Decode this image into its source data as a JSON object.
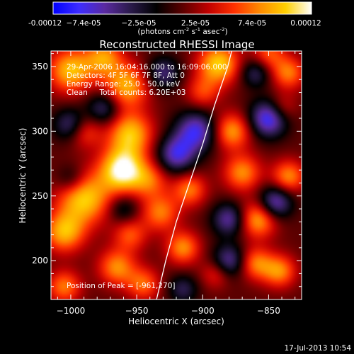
{
  "chart_data": {
    "type": "heatmap",
    "title": "Reconstructed RHESSI Image",
    "xlabel": "Heliocentric X (arcsec)",
    "ylabel": "Heliocentric Y (arcsec)",
    "xlim": [
      -1015,
      -825
    ],
    "ylim": [
      170,
      362
    ],
    "x_ticks": [
      -1000,
      -950,
      -900,
      -850
    ],
    "x_tick_labels": [
      "−1000",
      "−950",
      "−900",
      "−850"
    ],
    "y_ticks": [
      200,
      250,
      300,
      350
    ],
    "y_tick_labels": [
      "200",
      "250",
      "300",
      "350"
    ],
    "colorbar": {
      "range": [
        -0.00012,
        0.00012
      ],
      "tick_labels": [
        "-0.00012",
        "−7.4e-05",
        "−2.5e-05",
        "2.5e-05",
        "7.4e-05",
        "0.00012"
      ],
      "unit_main": "(photons cm",
      "unit_sup1": "-2",
      "unit_mid": " s",
      "unit_sup2": "-1",
      "unit_mid2": " asec",
      "unit_sup3": "-2",
      "unit_end": ")",
      "colormap": [
        "#0000ff",
        "#3d2cff",
        "#5a2aa0",
        "#2a1a4a",
        "#000000",
        "#5a0000",
        "#c00000",
        "#ff3000",
        "#ff8a00",
        "#ffd000",
        "#ffffff"
      ]
    },
    "annotations": [
      "29-Apr-2006 16:04:16.000 to 16:09:06.000",
      "Detectors: 4F 5F 6F 7F 8F, Att 0",
      "Energy Range: 25.0 - 50.0 keV",
      "Clean     Total counts: 6.20E+03"
    ],
    "peak_label": "Position of Peak = [-961,270]",
    "peak": [
      -961,
      270
    ],
    "limb_curve": [
      [
        -935,
        170
      ],
      [
        -928,
        200
      ],
      [
        -920,
        230
      ],
      [
        -910,
        260
      ],
      [
        -900,
        290
      ],
      [
        -891,
        320
      ],
      [
        -881,
        350
      ],
      [
        -878,
        362
      ]
    ],
    "sources": [
      {
        "x": -961,
        "y": 270,
        "amp": 1.0,
        "s": 12
      },
      {
        "x": -940,
        "y": 262,
        "amp": 0.45,
        "s": 10
      },
      {
        "x": -990,
        "y": 248,
        "amp": 0.8,
        "s": 14
      },
      {
        "x": -1005,
        "y": 222,
        "amp": 0.7,
        "s": 11
      },
      {
        "x": -955,
        "y": 298,
        "amp": 0.75,
        "s": 12
      },
      {
        "x": -958,
        "y": 335,
        "amp": 0.7,
        "s": 12
      },
      {
        "x": -1000,
        "y": 347,
        "amp": 0.75,
        "s": 12
      },
      {
        "x": -975,
        "y": 357,
        "amp": 0.6,
        "s": 10
      },
      {
        "x": -932,
        "y": 237,
        "amp": 0.55,
        "s": 10
      },
      {
        "x": -915,
        "y": 210,
        "amp": 0.6,
        "s": 9
      },
      {
        "x": -910,
        "y": 255,
        "amp": 0.55,
        "s": 9
      },
      {
        "x": -888,
        "y": 352,
        "amp": 0.8,
        "s": 11
      },
      {
        "x": -878,
        "y": 300,
        "amp": 0.65,
        "s": 10
      },
      {
        "x": -870,
        "y": 268,
        "amp": 0.6,
        "s": 10
      },
      {
        "x": -858,
        "y": 232,
        "amp": 0.7,
        "s": 10
      },
      {
        "x": -842,
        "y": 192,
        "amp": 0.6,
        "s": 9
      },
      {
        "x": -860,
        "y": 198,
        "amp": 0.55,
        "s": 9
      },
      {
        "x": -835,
        "y": 265,
        "amp": 0.6,
        "s": 9
      },
      {
        "x": -835,
        "y": 345,
        "amp": 0.55,
        "s": 9
      },
      {
        "x": -1005,
        "y": 180,
        "amp": 0.55,
        "s": 9
      },
      {
        "x": -965,
        "y": 195,
        "amp": 0.6,
        "s": 10
      },
      {
        "x": -945,
        "y": 182,
        "amp": 0.5,
        "s": 9
      },
      {
        "x": -990,
        "y": 300,
        "amp": 0.45,
        "s": 9
      },
      {
        "x": -900,
        "y": 330,
        "amp": 0.4,
        "s": 9
      },
      {
        "x": -955,
        "y": 220,
        "amp": 0.45,
        "s": 9
      },
      {
        "x": -890,
        "y": 190,
        "amp": 0.35,
        "s": 8
      },
      {
        "x": -850,
        "y": 360,
        "amp": 0.45,
        "s": 9
      },
      {
        "x": -840,
        "y": 318,
        "amp": 0.35,
        "s": 8
      },
      {
        "x": -920,
        "y": 282,
        "amp": -0.7,
        "s": 10
      },
      {
        "x": -905,
        "y": 300,
        "amp": -0.75,
        "s": 11
      },
      {
        "x": -880,
        "y": 232,
        "amp": -0.6,
        "s": 9
      },
      {
        "x": -850,
        "y": 310,
        "amp": -0.85,
        "s": 10
      },
      {
        "x": -845,
        "y": 245,
        "amp": -0.7,
        "s": 9
      },
      {
        "x": -880,
        "y": 200,
        "amp": -0.6,
        "s": 9
      },
      {
        "x": -1000,
        "y": 305,
        "amp": -0.55,
        "s": 9
      },
      {
        "x": -975,
        "y": 318,
        "amp": -0.5,
        "s": 9
      },
      {
        "x": -930,
        "y": 345,
        "amp": -0.5,
        "s": 9
      },
      {
        "x": -960,
        "y": 240,
        "amp": -0.35,
        "s": 8
      },
      {
        "x": -860,
        "y": 345,
        "amp": -0.45,
        "s": 8
      },
      {
        "x": -1000,
        "y": 263,
        "amp": -0.35,
        "s": 8
      },
      {
        "x": -915,
        "y": 178,
        "amp": -0.4,
        "s": 8
      }
    ]
  },
  "footer": {
    "date": "17-Jul-2013 10:54"
  }
}
